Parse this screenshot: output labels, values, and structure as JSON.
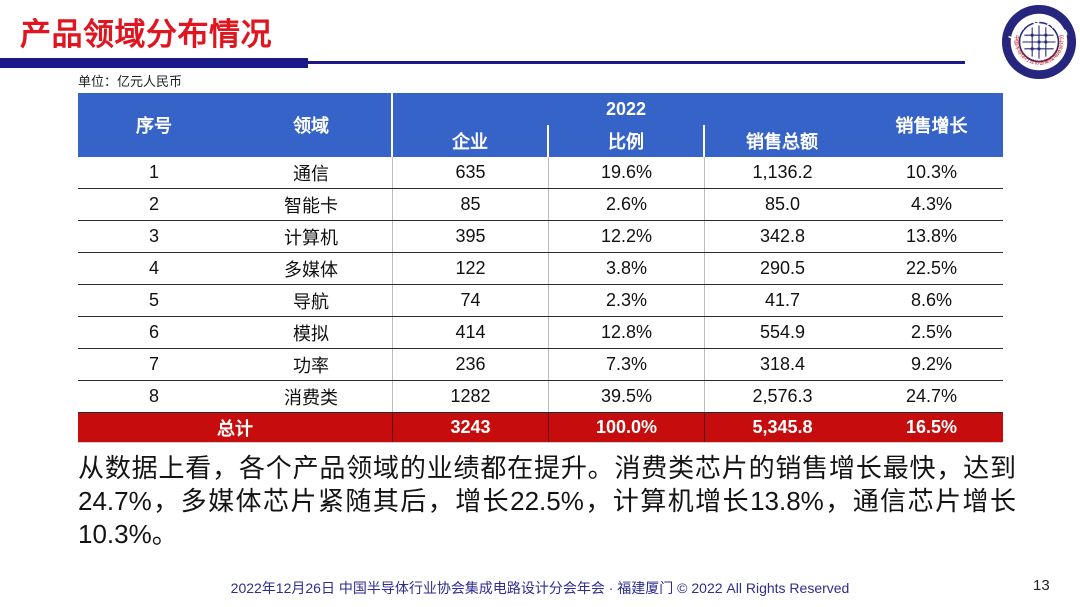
{
  "header": {
    "title": "产品领域分布情况"
  },
  "logo": {
    "top_text": "I C C A D",
    "ring_text": "中国半导体行业协会集成电路设计分会"
  },
  "table": {
    "unit_label": "单位：亿元人民币",
    "columns": {
      "index": "序号",
      "domain": "领域",
      "year_group": "2022",
      "companies": "企业",
      "ratio": "比例",
      "sales_total": "销售总额",
      "sales_growth": "销售增长"
    },
    "rows": [
      {
        "index": "1",
        "domain": "通信",
        "companies": "635",
        "ratio": "19.6%",
        "sales_total": "1,136.2",
        "sales_growth": "10.3%"
      },
      {
        "index": "2",
        "domain": "智能卡",
        "companies": "85",
        "ratio": "2.6%",
        "sales_total": "85.0",
        "sales_growth": "4.3%"
      },
      {
        "index": "3",
        "domain": "计算机",
        "companies": "395",
        "ratio": "12.2%",
        "sales_total": "342.8",
        "sales_growth": "13.8%"
      },
      {
        "index": "4",
        "domain": "多媒体",
        "companies": "122",
        "ratio": "3.8%",
        "sales_total": "290.5",
        "sales_growth": "22.5%"
      },
      {
        "index": "5",
        "domain": "导航",
        "companies": "74",
        "ratio": "2.3%",
        "sales_total": "41.7",
        "sales_growth": "8.6%"
      },
      {
        "index": "6",
        "domain": "模拟",
        "companies": "414",
        "ratio": "12.8%",
        "sales_total": "554.9",
        "sales_growth": "2.5%"
      },
      {
        "index": "7",
        "domain": "功率",
        "companies": "236",
        "ratio": "7.3%",
        "sales_total": "318.4",
        "sales_growth": "9.2%"
      },
      {
        "index": "8",
        "domain": "消费类",
        "companies": "1282",
        "ratio": "39.5%",
        "sales_total": "2,576.3",
        "sales_growth": "24.7%"
      }
    ],
    "total": {
      "label": "总计",
      "companies": "3243",
      "ratio": "100.0%",
      "sales_total": "5,345.8",
      "sales_growth": "16.5%"
    }
  },
  "paragraph": "从数据上看，各个产品领域的业绩都在提升。消费类芯片的销售增长最快，达到24.7%，多媒体芯片紧随其后，增长22.5%，计算机增长13.8%，通信芯片增长10.3%。",
  "footer": {
    "text": "2022年12月26日 中国半导体行业协会集成电路设计分会年会 · 福建厦门 © 2022 All Rights Reserved",
    "page_number": "13"
  },
  "colors": {
    "title_red": "#E0151F",
    "header_blue": "#3663C7",
    "total_red": "#C60C0C",
    "navy_bar": "#1A1A88",
    "footer_navy": "#2D2D92"
  }
}
